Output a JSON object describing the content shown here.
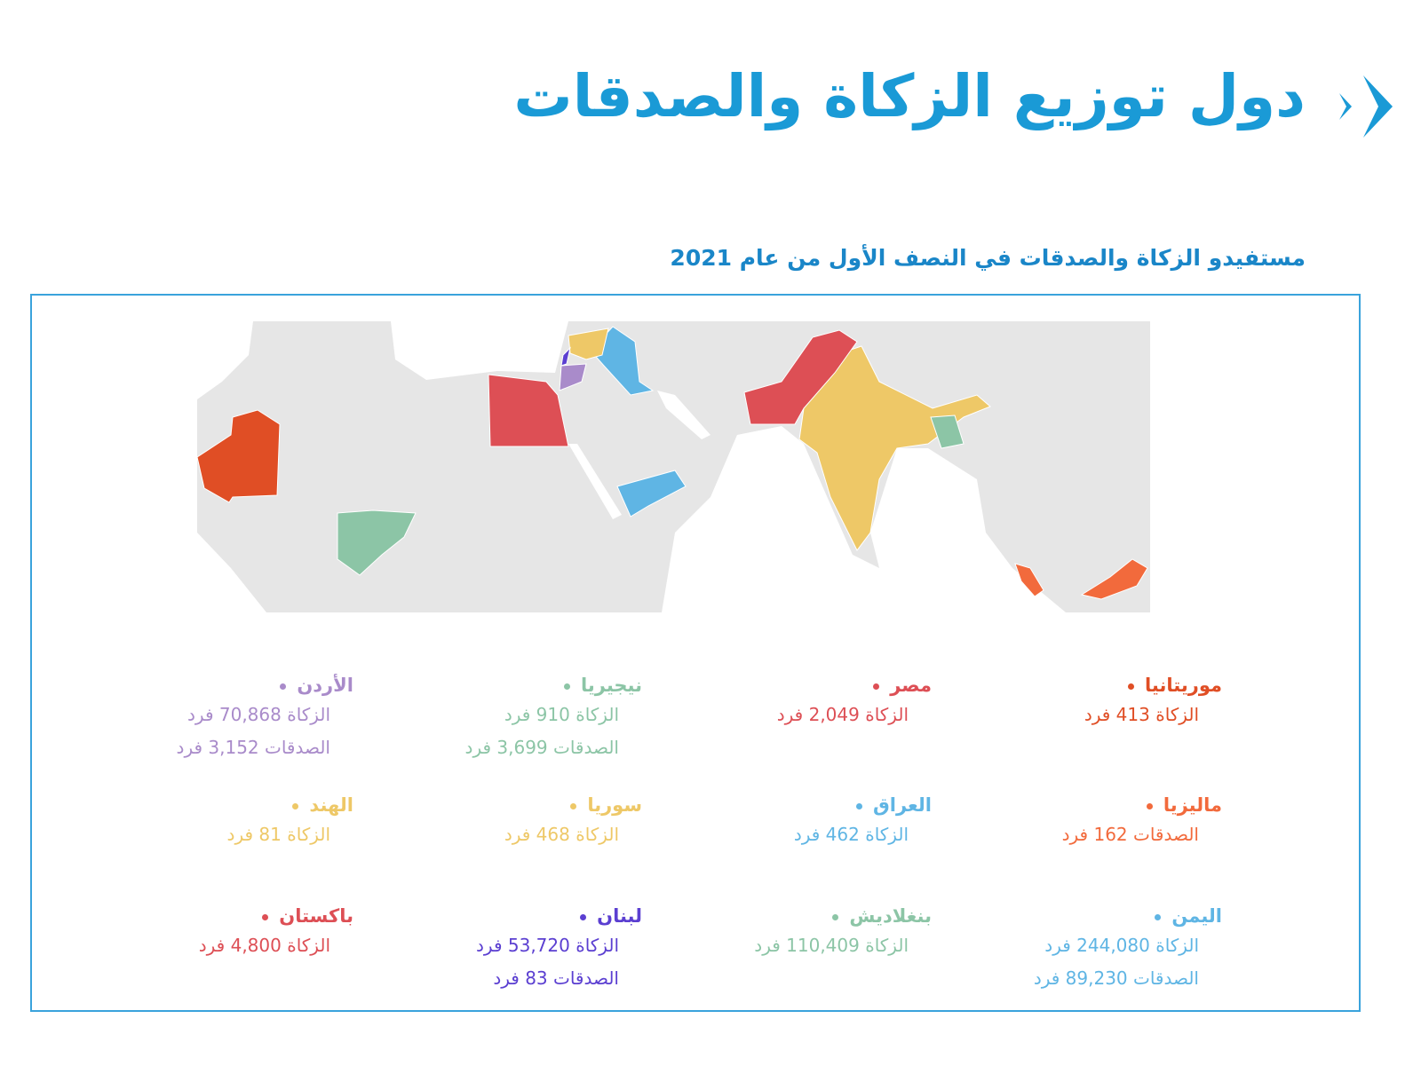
{
  "header": {
    "title": "دول توزيع الزكاة والصدقات",
    "subtitle": "مستفيدو الزكاة والصدقات في النصف الأول من عام 2021"
  },
  "countries": [
    {
      "name": "موريتانيا",
      "color": "#e04e25",
      "lines": [
        "الزكاة 413 فرد"
      ]
    },
    {
      "name": "مصر",
      "color": "#dd4f55",
      "lines": [
        "الزكاة 2,049 فرد"
      ]
    },
    {
      "name": "نيجيريا",
      "color": "#8cc5a6",
      "lines": [
        "الزكاة 910 فرد",
        "الصدقات 3,699 فرد"
      ]
    },
    {
      "name": "الأردن",
      "color": "#a98bca",
      "lines": [
        "الزكاة 70,868 فرد",
        "الصدقات 3,152 فرد"
      ]
    },
    {
      "name": "ماليزيا",
      "color": "#f26a3c",
      "lines": [
        "الصدقات 162 فرد"
      ]
    },
    {
      "name": "العراق",
      "color": "#5fb5e4",
      "lines": [
        "الزكاة 462 فرد"
      ]
    },
    {
      "name": "سوريا",
      "color": "#eec867",
      "lines": [
        "الزكاة 468 فرد"
      ]
    },
    {
      "name": "الهند",
      "color": "#eec867",
      "lines": [
        "الزكاة 81 فرد"
      ]
    },
    {
      "name": "اليمن",
      "color": "#5fb5e4",
      "lines": [
        "الزكاة 244,080 فرد",
        "الصدقات 89,230 فرد"
      ]
    },
    {
      "name": "بنغلاديش",
      "color": "#8cc5a6",
      "lines": [
        "الزكاة 110,409 فرد"
      ]
    },
    {
      "name": "لبنان",
      "color": "#5b3fd1",
      "lines": [
        "الزكاة 53,720 فرد",
        "الصدقات 83 فرد"
      ]
    },
    {
      "name": "باكستان",
      "color": "#dd4f55",
      "lines": [
        "الزكاة 4,800 فرد"
      ]
    }
  ]
}
